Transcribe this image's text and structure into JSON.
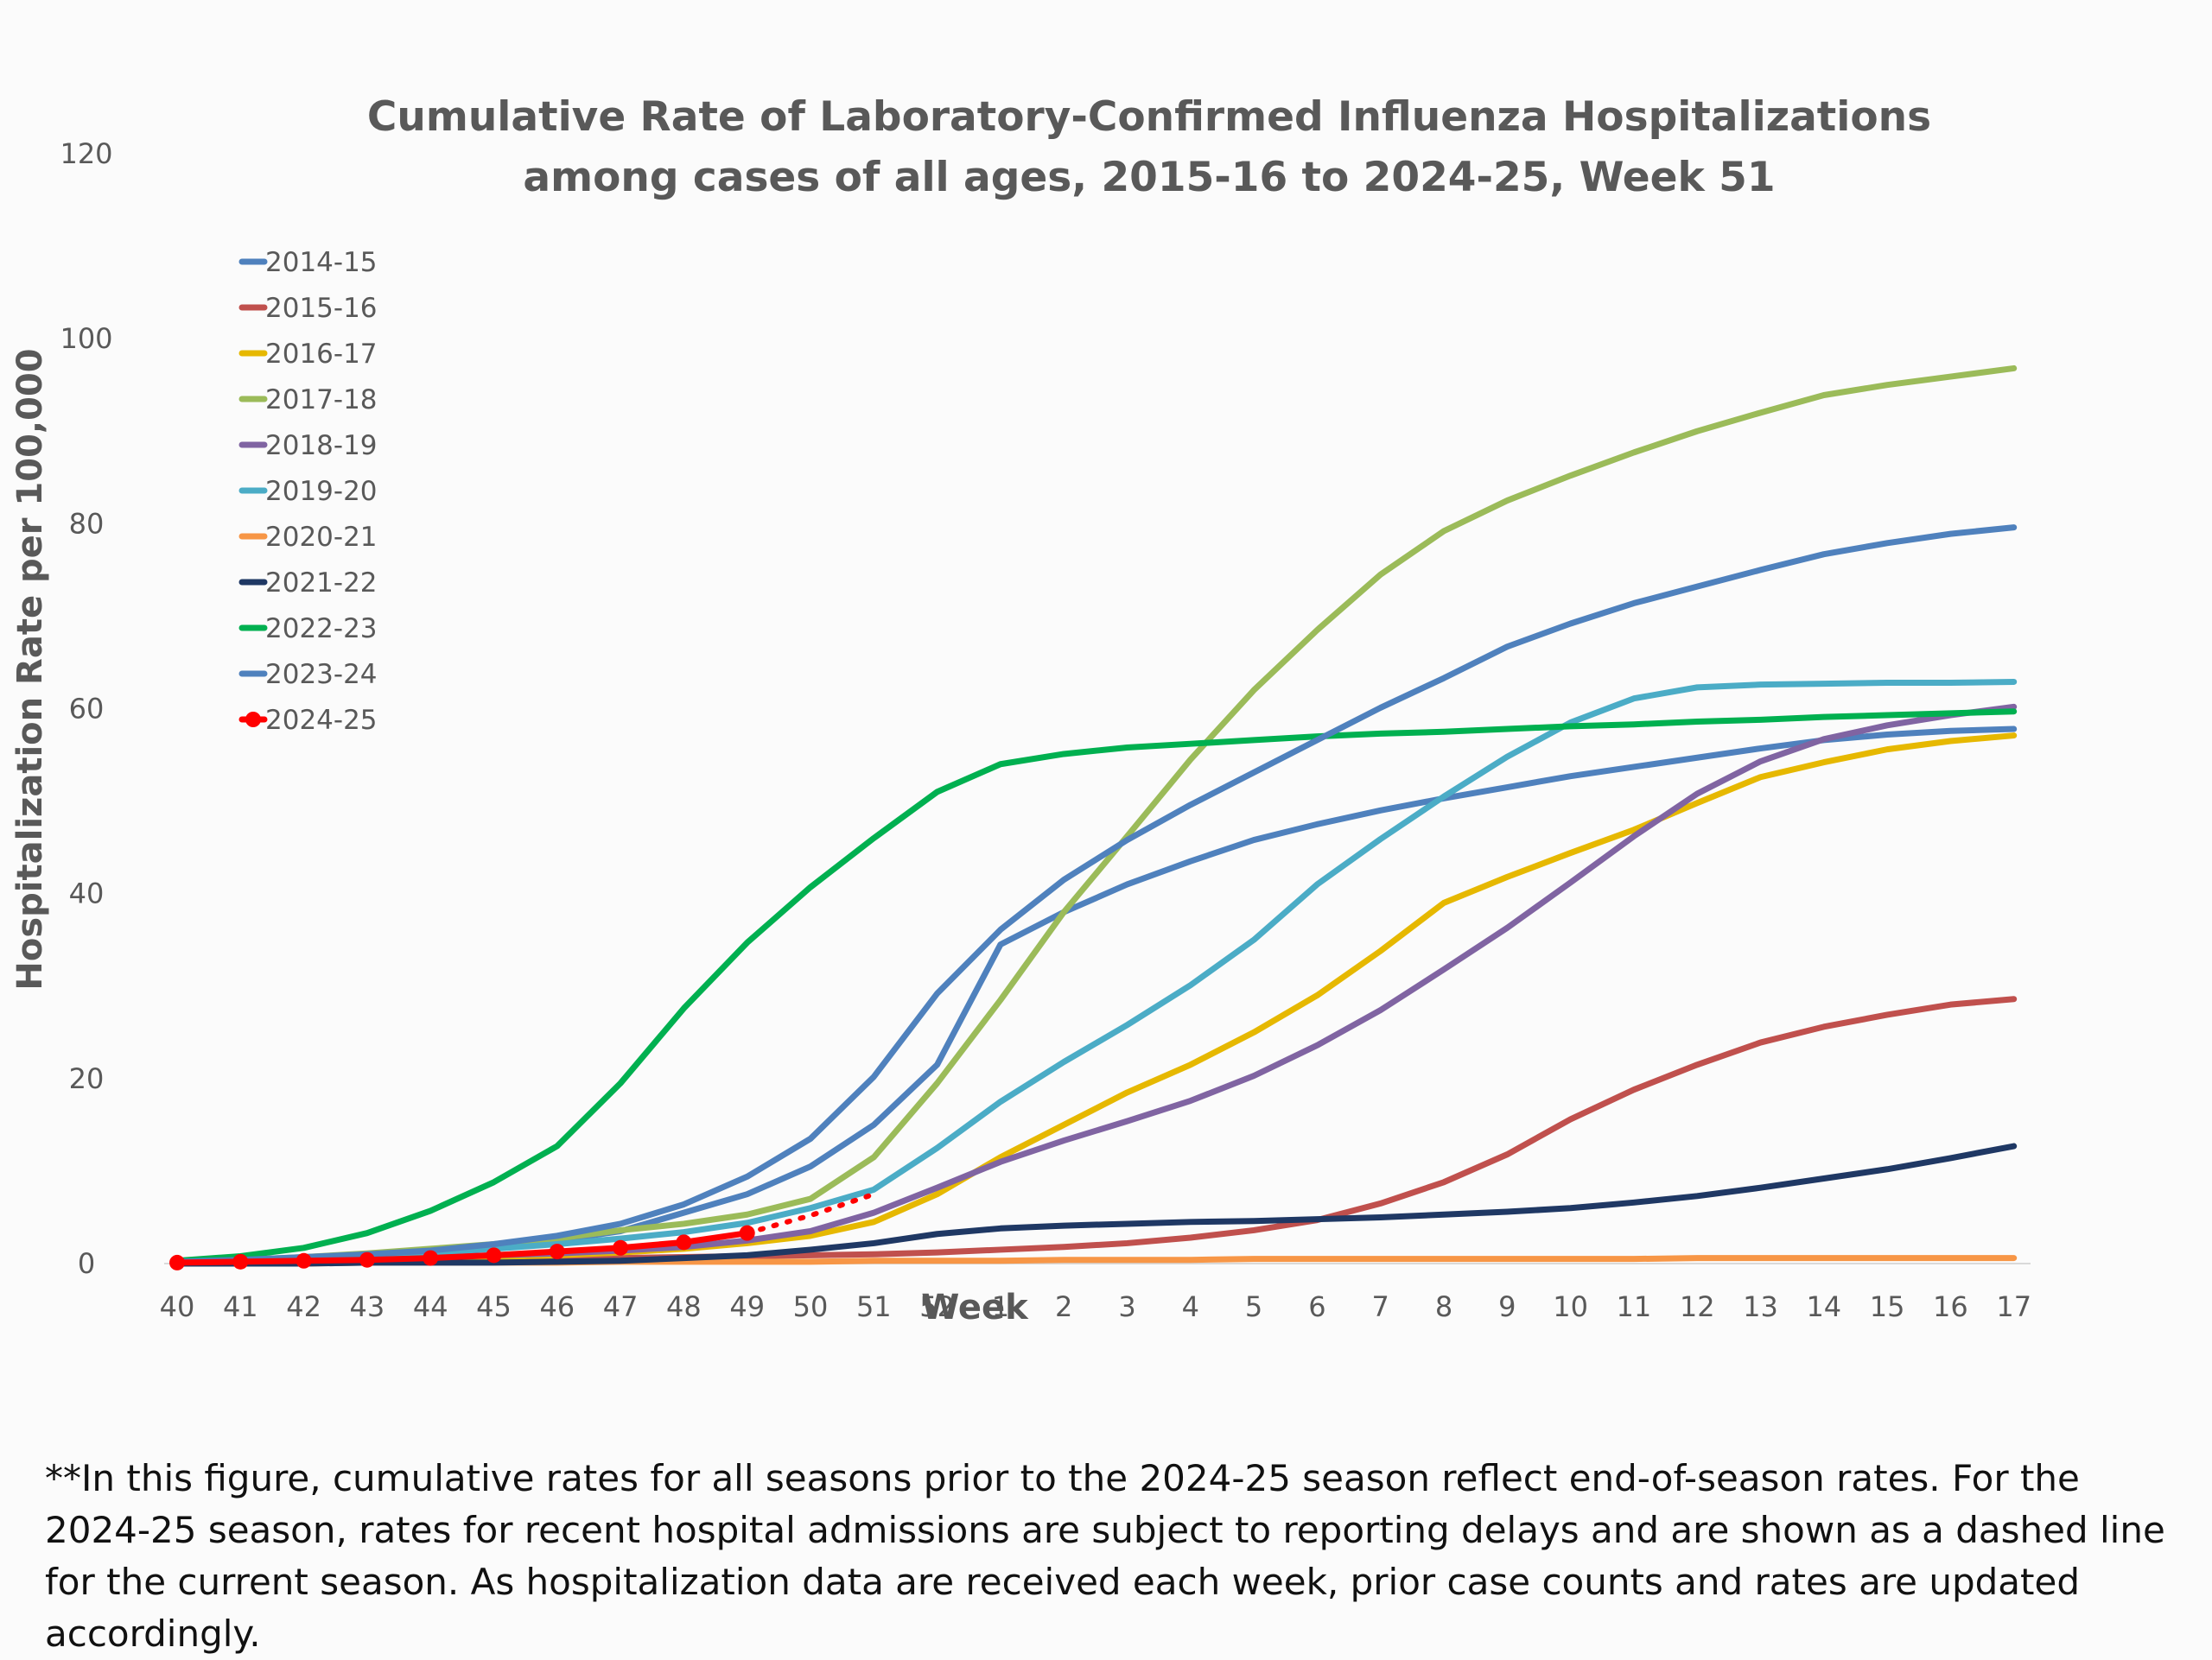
{
  "footnote": "**In this figure, cumulative rates for all seasons prior to the 2024-25 season reflect end-of-season rates. For the 2024-25 season, rates for recent hospital admissions are subject to reporting delays and are shown as a dashed line for the current season. As hospitalization data are received each week, prior case counts and rates are updated accordingly.",
  "chart_data": {
    "type": "line",
    "title": [
      "Cumulative Rate of Laboratory-Confirmed Influenza Hospitalizations",
      "among cases of all ages, 2015-16 to 2024-25, Week 51"
    ],
    "xlabel": "Week",
    "ylabel": "Hospitalization Rate per 100,000",
    "ylim": [
      0,
      120
    ],
    "yticks": [
      0,
      20,
      40,
      60,
      80,
      100,
      120
    ],
    "grid": false,
    "legend": "left, upper",
    "categories": [
      "40",
      "41",
      "42",
      "43",
      "44",
      "45",
      "46",
      "47",
      "48",
      "49",
      "50",
      "51",
      "52",
      "1",
      "2",
      "3",
      "4",
      "5",
      "6",
      "7",
      "8",
      "9",
      "10",
      "11",
      "12",
      "13",
      "14",
      "15",
      "16",
      "17"
    ],
    "series": [
      {
        "name": "2014-15",
        "color": "#4f81bd",
        "values": [
          0.2,
          0.3,
          0.5,
          0.8,
          1.2,
          1.8,
          2.5,
          3.5,
          5.5,
          7.5,
          10.5,
          15,
          21.5,
          34.5,
          38,
          41,
          43.5,
          45.8,
          47.5,
          49,
          50.3,
          51.5,
          52.7,
          53.7,
          54.7,
          55.7,
          56.6,
          57.2,
          57.6,
          57.8
        ]
      },
      {
        "name": "2015-16",
        "color": "#c0504d",
        "values": [
          0.1,
          0.1,
          0.2,
          0.2,
          0.3,
          0.4,
          0.5,
          0.6,
          0.7,
          0.8,
          0.9,
          1.0,
          1.2,
          1.5,
          1.8,
          2.2,
          2.8,
          3.6,
          4.7,
          6.5,
          8.8,
          11.8,
          15.6,
          18.8,
          21.5,
          23.9,
          25.6,
          26.9,
          28.0,
          28.6
        ]
      },
      {
        "name": "2016-17",
        "color": "#e6b800",
        "values": [
          0.1,
          0.2,
          0.3,
          0.4,
          0.5,
          0.7,
          0.9,
          1.2,
          1.6,
          2.2,
          3.0,
          4.5,
          7.5,
          11.5,
          15,
          18.5,
          21.5,
          25,
          29,
          33.8,
          39,
          41.8,
          44.4,
          46.9,
          49.8,
          52.6,
          54.2,
          55.6,
          56.5,
          57.1
        ]
      },
      {
        "name": "2017-18",
        "color": "#9bbb59",
        "values": [
          0.2,
          0.4,
          0.7,
          1.1,
          1.6,
          2.1,
          2.7,
          3.6,
          4.3,
          5.3,
          7,
          11.5,
          19.5,
          28.5,
          38,
          46.2,
          54.5,
          62,
          68.5,
          74.5,
          79.2,
          82.5,
          85.2,
          87.7,
          90,
          92,
          93.9,
          95,
          95.9,
          96.8
        ]
      },
      {
        "name": "2018-19",
        "color": "#8064a2",
        "values": [
          0.1,
          0.2,
          0.3,
          0.5,
          0.7,
          0.9,
          1.1,
          1.4,
          1.8,
          2.5,
          3.5,
          5.5,
          8.2,
          11,
          13.3,
          15.4,
          17.6,
          20.3,
          23.6,
          27.4,
          31.8,
          36.3,
          41.2,
          46.2,
          50.8,
          54.3,
          56.7,
          58.2,
          59.3,
          60.2
        ]
      },
      {
        "name": "2019-20",
        "color": "#4bacc6",
        "values": [
          0.1,
          0.3,
          0.5,
          0.8,
          1.2,
          1.6,
          2.1,
          2.7,
          3.4,
          4.4,
          6,
          8,
          12.5,
          17.5,
          21.8,
          25.8,
          30.1,
          35,
          41,
          45.9,
          50.5,
          54.8,
          58.5,
          61.1,
          62.3,
          62.6,
          62.7,
          62.8,
          62.8,
          62.9
        ]
      },
      {
        "name": "2020-21",
        "color": "#f79646",
        "values": [
          0,
          0,
          0,
          0.1,
          0.1,
          0.1,
          0.1,
          0.2,
          0.2,
          0.2,
          0.2,
          0.3,
          0.3,
          0.3,
          0.4,
          0.4,
          0.4,
          0.5,
          0.5,
          0.5,
          0.5,
          0.5,
          0.5,
          0.5,
          0.6,
          0.6,
          0.6,
          0.6,
          0.6,
          0.6
        ]
      },
      {
        "name": "2021-22",
        "color": "#1f3864",
        "values": [
          0,
          0,
          0,
          0.1,
          0.1,
          0.1,
          0.2,
          0.3,
          0.6,
          0.9,
          1.5,
          2.2,
          3.2,
          3.8,
          4.1,
          4.3,
          4.5,
          4.6,
          4.8,
          5.0,
          5.3,
          5.6,
          6,
          6.6,
          7.3,
          8.2,
          9.2,
          10.2,
          11.4,
          12.7
        ]
      },
      {
        "name": "2022-23",
        "color": "#00b050",
        "values": [
          0.3,
          0.8,
          1.7,
          3.3,
          5.7,
          8.8,
          12.7,
          19.5,
          27.6,
          34.7,
          40.7,
          46,
          51,
          54,
          55.1,
          55.8,
          56.2,
          56.6,
          57,
          57.3,
          57.5,
          57.8,
          58.1,
          58.3,
          58.6,
          58.8,
          59.1,
          59.3,
          59.5,
          59.7
        ]
      },
      {
        "name": "2023-24",
        "color": "#4f81bd",
        "values": [
          0.2,
          0.4,
          0.7,
          1,
          1.4,
          2.1,
          3,
          4.3,
          6.4,
          9.4,
          13.5,
          20.2,
          29.2,
          36.1,
          41.5,
          45.8,
          49.6,
          53.1,
          56.6,
          60.1,
          63.3,
          66.7,
          69.2,
          71.4,
          73.2,
          75,
          76.7,
          77.9,
          78.9,
          79.6
        ]
      },
      {
        "name": "2024-25",
        "color": "#ff0000",
        "dashed_from": "49",
        "values": [
          0.1,
          0.2,
          0.3,
          0.4,
          0.6,
          0.9,
          1.3,
          1.7,
          2.3,
          3.3,
          5.2,
          7.5,
          null,
          null,
          null,
          null,
          null,
          null,
          null,
          null,
          null,
          null,
          null,
          null,
          null,
          null,
          null,
          null,
          null,
          null
        ]
      }
    ]
  }
}
